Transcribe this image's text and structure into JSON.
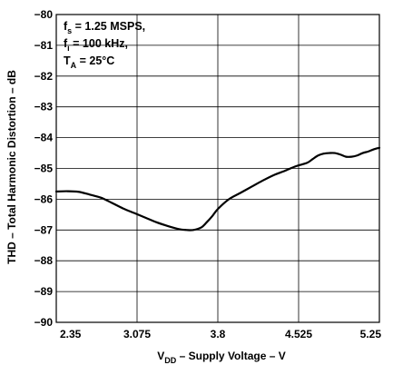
{
  "chart_data": {
    "type": "line",
    "title": "",
    "xlabel": {
      "main": "V",
      "sub": "DD",
      "rest": " – Supply Voltage – V"
    },
    "ylabel": "THD – Total Harmonic Distortion – dB",
    "xlim": [
      2.35,
      5.25
    ],
    "ylim": [
      -90,
      -80
    ],
    "xticks": [
      2.35,
      3.075,
      3.8,
      4.525,
      5.25
    ],
    "xtick_labels": [
      "2.35",
      "3.075",
      "3.8",
      "4.525",
      "5.25"
    ],
    "yticks": [
      -80,
      -81,
      -82,
      -83,
      -84,
      -85,
      -86,
      -87,
      -88,
      -89,
      -90
    ],
    "ytick_labels": [
      "−80",
      "−81",
      "−82",
      "−83",
      "−84",
      "−85",
      "−86",
      "−87",
      "−88",
      "−89",
      "−90"
    ],
    "grid": true,
    "annotations": [
      {
        "main": "f",
        "sub": "s",
        "rest": " = 1.25 MSPS,"
      },
      {
        "main": "f",
        "sub": "i",
        "rest": " = 100  kHz,"
      },
      {
        "main": "T",
        "sub": "A",
        "rest": " = 25°C"
      }
    ],
    "series": [
      {
        "color": "#000000",
        "x": [
          2.35,
          2.45,
          2.55,
          2.65,
          2.75,
          2.85,
          2.95,
          3.05,
          3.15,
          3.25,
          3.35,
          3.45,
          3.52,
          3.58,
          3.65,
          3.7,
          3.75,
          3.8,
          3.9,
          4.0,
          4.1,
          4.2,
          4.3,
          4.4,
          4.5,
          4.6,
          4.65,
          4.7,
          4.75,
          4.8,
          4.85,
          4.9,
          4.95,
          5.0,
          5.05,
          5.1,
          5.15,
          5.2,
          5.25
        ],
        "y": [
          -85.75,
          -85.74,
          -85.76,
          -85.85,
          -85.95,
          -86.12,
          -86.3,
          -86.45,
          -86.6,
          -86.75,
          -86.87,
          -86.97,
          -87.0,
          -87.0,
          -86.92,
          -86.75,
          -86.55,
          -86.32,
          -86.0,
          -85.8,
          -85.6,
          -85.4,
          -85.22,
          -85.08,
          -84.93,
          -84.82,
          -84.7,
          -84.58,
          -84.52,
          -84.5,
          -84.5,
          -84.55,
          -84.62,
          -84.62,
          -84.58,
          -84.5,
          -84.45,
          -84.38,
          -84.33
        ]
      }
    ]
  }
}
